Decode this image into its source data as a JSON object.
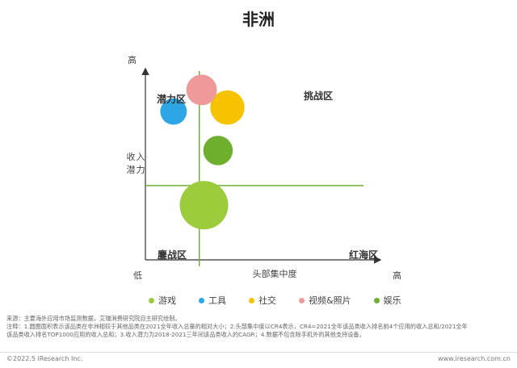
{
  "title": "非洲",
  "chart_data": {
    "type": "scatter",
    "xlabel": "头部集中度",
    "ylabel": "收入潜力",
    "x_low": "低",
    "x_high": "高",
    "y_high": "高",
    "quadrants": {
      "top_left": "潜力区",
      "top_right": "挑战区",
      "bottom_left": "鏖战区",
      "bottom_right": "红海区"
    },
    "series": [
      {
        "name": "游戏",
        "color": "#9CCB3B",
        "x": 0.25,
        "y": 0.28,
        "size": 1.0
      },
      {
        "name": "工具",
        "color": "#2EA6E6",
        "x": 0.12,
        "y": 0.76,
        "size": 0.3
      },
      {
        "name": "社交",
        "color": "#F7C300",
        "x": 0.35,
        "y": 0.78,
        "size": 0.5
      },
      {
        "name": "视频&照片",
        "color": "#EF9A9A",
        "x": 0.24,
        "y": 0.87,
        "size": 0.4
      },
      {
        "name": "娱乐",
        "color": "#6EAF2E",
        "x": 0.31,
        "y": 0.56,
        "size": 0.37
      }
    ],
    "divider_x": 0.23,
    "divider_y": 0.38,
    "grid": false,
    "legend_position": "bottom"
  },
  "notes": [
    "来源：主要海外应用市场监测数据，艾瑞消费研究院自主研究绘制。",
    "注释：1.圆圈面积表示该品类在非洲相较于其他品类在2021全年收入总量的相对大小；2.头部集中度以CR4表示，CR4=2021全年该品类收入排名前4个应用的收入总和/2021全年",
    "该品类收入排名TOP1000应用的收入总和；3.收入潜力为2018-2021三年间该品类收入的CAGR；4.数据不包含除手机外的其他支持设备。"
  ],
  "footer": {
    "left": "©2022.5 iResearch Inc.",
    "right": "www.iresearch.com.cn"
  }
}
